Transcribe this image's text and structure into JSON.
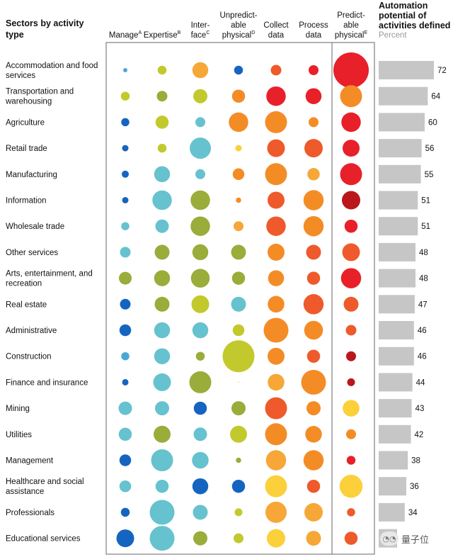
{
  "chart_data": {
    "type": "bubble-matrix",
    "title": "Sectors by activity type",
    "columns": [
      {
        "key": "manage",
        "label": [
          "Manage"
        ],
        "sup": "A"
      },
      {
        "key": "expertise",
        "label": [
          "Expertise"
        ],
        "sup": "B"
      },
      {
        "key": "interface",
        "label": [
          "Inter-",
          "face"
        ],
        "sup": "C"
      },
      {
        "key": "unpredictable",
        "label": [
          "Unpredict-",
          "able",
          "physical"
        ],
        "sup": "D"
      },
      {
        "key": "collect",
        "label": [
          "Collect",
          "data"
        ],
        "sup": ""
      },
      {
        "key": "process",
        "label": [
          "Process",
          "data"
        ],
        "sup": ""
      },
      {
        "key": "predictable",
        "label": [
          "Predict-",
          "able",
          "physical"
        ],
        "sup": "E"
      }
    ],
    "automation_header": [
      "Automation",
      "potential of",
      "activities defined"
    ],
    "automation_subheader": "Percent",
    "rows": [
      {
        "sector": [
          "Accommodation and food",
          "services"
        ],
        "automation": 72,
        "sizes": [
          0.12,
          0.25,
          0.45,
          0.25,
          0.3,
          0.28,
          1.0
        ],
        "colors": [
          "light_blue",
          "yellow_green",
          "light_orange",
          "blue",
          "dark_orange",
          "red",
          "red"
        ]
      },
      {
        "sector": [
          "Transportation and",
          "warehousing"
        ],
        "automation": 64,
        "sizes": [
          0.25,
          0.3,
          0.4,
          0.37,
          0.55,
          0.45,
          0.62
        ],
        "colors": [
          "yellow_green",
          "olive",
          "yellow_green",
          "orange",
          "red",
          "red",
          "orange"
        ]
      },
      {
        "sector": [
          "Agriculture"
        ],
        "automation": 60,
        "sizes": [
          0.23,
          0.37,
          0.28,
          0.55,
          0.62,
          0.28,
          0.55
        ],
        "colors": [
          "blue",
          "yellow_green",
          "teal",
          "orange",
          "orange",
          "orange",
          "red"
        ]
      },
      {
        "sector": [
          "Retail trade"
        ],
        "automation": 56,
        "sizes": [
          0.18,
          0.25,
          0.6,
          0.18,
          0.5,
          0.52,
          0.48
        ],
        "colors": [
          "blue",
          "yellow_green",
          "teal",
          "gold",
          "dark_orange",
          "dark_orange",
          "red"
        ]
      },
      {
        "sector": [
          "Manufacturing"
        ],
        "automation": 55,
        "sizes": [
          0.2,
          0.45,
          0.28,
          0.33,
          0.62,
          0.35,
          0.62
        ],
        "colors": [
          "blue",
          "teal",
          "teal",
          "orange",
          "orange",
          "light_orange",
          "red"
        ]
      },
      {
        "sector": [
          "Information"
        ],
        "automation": 51,
        "sizes": [
          0.18,
          0.55,
          0.55,
          0.15,
          0.48,
          0.57,
          0.52
        ],
        "colors": [
          "blue",
          "teal",
          "olive",
          "orange",
          "dark_orange",
          "orange",
          "dark_red"
        ]
      },
      {
        "sector": [
          "Wholesale trade"
        ],
        "automation": 51,
        "sizes": [
          0.23,
          0.38,
          0.55,
          0.28,
          0.55,
          0.57,
          0.37
        ],
        "colors": [
          "teal",
          "teal",
          "olive",
          "light_orange",
          "dark_orange",
          "orange",
          "red"
        ]
      },
      {
        "sector": [
          "Other services"
        ],
        "automation": 48,
        "sizes": [
          0.3,
          0.42,
          0.45,
          0.42,
          0.48,
          0.42,
          0.5
        ],
        "colors": [
          "teal",
          "olive",
          "olive",
          "olive",
          "orange",
          "dark_orange",
          "dark_orange"
        ]
      },
      {
        "sector": [
          "Arts, entertainment, and",
          "recreation"
        ],
        "automation": 48,
        "sizes": [
          0.36,
          0.45,
          0.53,
          0.37,
          0.45,
          0.37,
          0.57
        ],
        "colors": [
          "olive",
          "olive",
          "olive",
          "olive",
          "orange",
          "dark_orange",
          "red"
        ]
      },
      {
        "sector": [
          "Real estate"
        ],
        "automation": 47,
        "sizes": [
          0.3,
          0.42,
          0.5,
          0.42,
          0.47,
          0.57,
          0.42
        ],
        "colors": [
          "blue",
          "olive",
          "yellow_green",
          "teal",
          "orange",
          "dark_orange",
          "dark_orange"
        ]
      },
      {
        "sector": [
          "Administrative"
        ],
        "automation": 46,
        "sizes": [
          0.33,
          0.45,
          0.45,
          0.33,
          0.7,
          0.53,
          0.3
        ],
        "colors": [
          "blue",
          "teal",
          "teal",
          "yellow_green",
          "orange",
          "orange",
          "dark_orange"
        ]
      },
      {
        "sector": [
          "Construction"
        ],
        "automation": 46,
        "sizes": [
          0.23,
          0.45,
          0.25,
          0.9,
          0.48,
          0.37,
          0.28
        ],
        "colors": [
          "light_blue",
          "teal",
          "olive",
          "yellow_green",
          "orange",
          "dark_orange",
          "dark_red"
        ]
      },
      {
        "sector": [
          "Finance and insurance"
        ],
        "automation": 44,
        "sizes": [
          0.18,
          0.5,
          0.62,
          0.02,
          0.47,
          0.7,
          0.22
        ],
        "colors": [
          "blue",
          "teal",
          "olive",
          "gold",
          "light_orange",
          "orange",
          "dark_red"
        ]
      },
      {
        "sector": [
          "Mining"
        ],
        "automation": 43,
        "sizes": [
          0.38,
          0.4,
          0.37,
          0.4,
          0.62,
          0.4,
          0.47
        ],
        "colors": [
          "teal",
          "teal",
          "blue",
          "olive",
          "dark_orange",
          "orange",
          "gold"
        ]
      },
      {
        "sector": [
          "Utilities"
        ],
        "automation": 42,
        "sizes": [
          0.37,
          0.48,
          0.38,
          0.48,
          0.62,
          0.47,
          0.28
        ],
        "colors": [
          "teal",
          "olive",
          "teal",
          "yellow_green",
          "orange",
          "orange",
          "orange"
        ]
      },
      {
        "sector": [
          "Management"
        ],
        "automation": 38,
        "sizes": [
          0.33,
          0.62,
          0.47,
          0.15,
          0.57,
          0.57,
          0.25
        ],
        "colors": [
          "blue",
          "teal",
          "teal",
          "olive",
          "light_orange",
          "orange",
          "red"
        ]
      },
      {
        "sector": [
          "Healthcare and social",
          "assistance"
        ],
        "automation": 36,
        "sizes": [
          0.33,
          0.37,
          0.45,
          0.37,
          0.62,
          0.37,
          0.65
        ],
        "colors": [
          "teal",
          "teal",
          "blue",
          "blue",
          "gold",
          "dark_orange",
          "gold"
        ]
      },
      {
        "sector": [
          "Professionals"
        ],
        "automation": 34,
        "sizes": [
          0.25,
          0.7,
          0.42,
          0.22,
          0.6,
          0.52,
          0.23
        ],
        "colors": [
          "blue",
          "teal",
          "teal",
          "yellow_green",
          "light_orange",
          "light_orange",
          "dark_orange"
        ]
      },
      {
        "sector": [
          "Educational services"
        ],
        "automation": "",
        "sizes": [
          0.5,
          0.7,
          0.4,
          0.28,
          0.52,
          0.42,
          0.37
        ],
        "colors": [
          "blue",
          "teal",
          "olive",
          "yellow_green",
          "gold",
          "light_orange",
          "dark_orange"
        ]
      }
    ],
    "palette": {
      "blue": "#1565c0",
      "light_blue": "#4aa8d8",
      "teal": "#66c2cf",
      "olive": "#9aac3a",
      "yellow_green": "#c2c92c",
      "gold": "#fbd03a",
      "light_orange": "#f6a737",
      "orange": "#f48c26",
      "dark_orange": "#ee5a2b",
      "red": "#e8202a",
      "dark_red": "#b9171c",
      "bar": "#c6c6c6",
      "frame": "#666666"
    }
  },
  "watermark": {
    "icon": "wechat-icon",
    "text": "量子位"
  }
}
